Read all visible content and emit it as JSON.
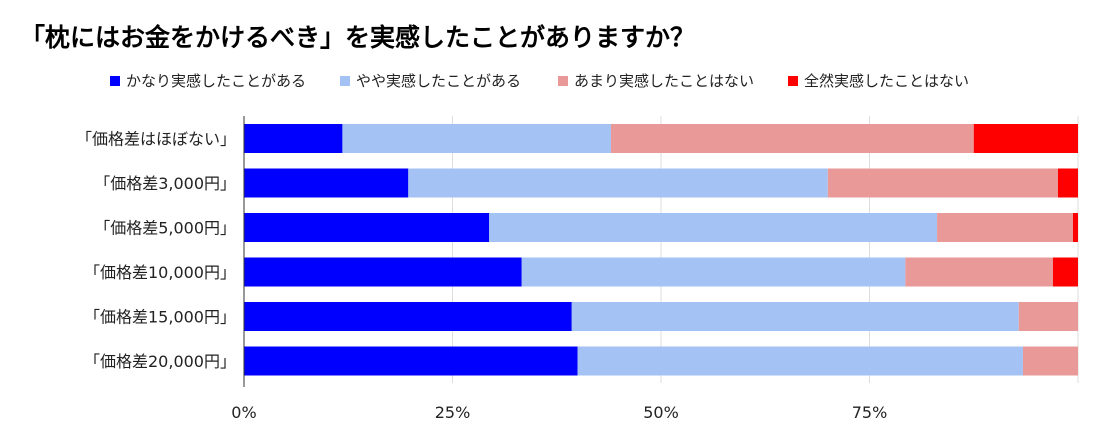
{
  "chart_data": {
    "type": "bar",
    "orientation": "horizontal",
    "stacked": "percent",
    "title": "「枕にはお金をかけるべき」を実感したことがありますか？",
    "categories": [
      "「価格差はほぼない」",
      "「価格差3,000円」",
      "「価格差5,000円」",
      "「価格差10,000円」",
      "「価格差15,000円」",
      "「価格差20,000円」"
    ],
    "series": [
      {
        "name": "かなり実感したことがある",
        "color": "#0000ff",
        "values": [
          11.8,
          19.7,
          29.4,
          33.3,
          39.3,
          40.0
        ]
      },
      {
        "name": "やや実感したことがある",
        "color": "#a4c2f4",
        "values": [
          32.2,
          50.3,
          53.7,
          46.0,
          53.6,
          53.4
        ]
      },
      {
        "name": "あまり実感したことはない",
        "color": "#ea9999",
        "values": [
          43.5,
          27.6,
          16.3,
          17.7,
          7.1,
          6.6
        ]
      },
      {
        "name": "全然実感したことはない",
        "color": "#ff0000",
        "values": [
          12.5,
          2.4,
          0.6,
          3.0,
          0,
          0
        ]
      }
    ],
    "xticks": [
      "0%",
      "25%",
      "50%",
      "75%"
    ],
    "xlim": [
      0,
      100
    ],
    "grid": true,
    "legend": "top"
  }
}
